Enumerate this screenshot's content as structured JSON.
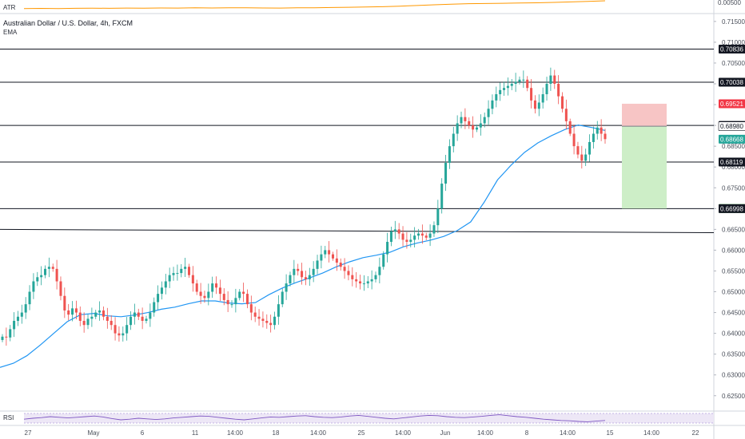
{
  "header": {
    "title": "Australian Dollar / U.S. Dollar, 4h, FXCM",
    "indicator": "EMA"
  },
  "panes": {
    "atr_label": "ATR",
    "atr_value": "0.00500",
    "rsi_label": "RSI"
  },
  "colors": {
    "bull": "#26a69a",
    "bear": "#ef5350",
    "ema": "#2196f3",
    "atr": "#ff9800",
    "rsi": "#7e57c2",
    "stop_zone": "#f7c5c5",
    "target_zone": "#cdeec7",
    "level_line": "#131722"
  },
  "chart_data": {
    "type": "line",
    "title": "Australian Dollar / U.S. Dollar, 4h, FXCM",
    "y_ticks": [
      "0.71500",
      "0.71000",
      "0.70500",
      "0.70000",
      "0.69500",
      "0.69000",
      "0.68500",
      "0.68000",
      "0.67500",
      "0.67000",
      "0.66500",
      "0.66000",
      "0.65500",
      "0.65000",
      "0.64500",
      "0.64000",
      "0.63500",
      "0.63000",
      "0.62500"
    ],
    "x_ticks": [
      "27",
      "May",
      "6",
      "11",
      "14:00",
      "18",
      "14:00",
      "25",
      "14:00",
      "Jun",
      "14:00",
      "8",
      "14:00",
      "15",
      "14:00",
      "22"
    ],
    "ylim": [
      0.6215,
      0.7167
    ],
    "price_labels": [
      {
        "text": "0.70836",
        "value": 0.70836,
        "kind": "level"
      },
      {
        "text": "0.70038",
        "value": 0.70038,
        "kind": "level"
      },
      {
        "text": "0.69521",
        "value": 0.69521,
        "kind": "stop"
      },
      {
        "text": "0.69000",
        "value": 0.69,
        "kind": "level"
      },
      {
        "text": "0.68980",
        "value": 0.6898,
        "kind": "entry"
      },
      {
        "text": "0.68668",
        "value": 0.68668,
        "kind": "last"
      },
      {
        "text": "0.68119",
        "value": 0.68119,
        "kind": "level"
      },
      {
        "text": "0.67001",
        "value": 0.67001,
        "kind": "target"
      },
      {
        "text": "0.66998",
        "value": 0.66998,
        "kind": "level"
      }
    ],
    "horizontal_levels": [
      0.70836,
      0.70038,
      0.69,
      0.68119,
      0.66998
    ],
    "trend_line": {
      "from": 0.665,
      "to": 0.6642
    },
    "position": {
      "entry": 0.6898,
      "stop": 0.69521,
      "target": 0.67001
    },
    "ema_series": [
      0.6318,
      0.6328,
      0.6346,
      0.6372,
      0.64,
      0.6428,
      0.6445,
      0.6448,
      0.6442,
      0.644,
      0.6444,
      0.645,
      0.6458,
      0.6463,
      0.6471,
      0.6478,
      0.6478,
      0.6473,
      0.6471,
      0.6474,
      0.6493,
      0.6509,
      0.6522,
      0.6533,
      0.6545,
      0.656,
      0.6572,
      0.6582,
      0.6588,
      0.6595,
      0.6608,
      0.6617,
      0.6624,
      0.6633,
      0.6647,
      0.6668,
      0.6715,
      0.6769,
      0.6804,
      0.6835,
      0.6858,
      0.6875,
      0.689,
      0.6901,
      0.6895,
      0.6888
    ],
    "close_series": [
      0.6392,
      0.639,
      0.641,
      0.643,
      0.644,
      0.645,
      0.647,
      0.65,
      0.6525,
      0.6535,
      0.654,
      0.6555,
      0.656,
      0.6555,
      0.6525,
      0.649,
      0.6455,
      0.6445,
      0.646,
      0.645,
      0.643,
      0.642,
      0.6435,
      0.644,
      0.645,
      0.6455,
      0.644,
      0.643,
      0.642,
      0.64,
      0.6395,
      0.64,
      0.642,
      0.644,
      0.645,
      0.644,
      0.643,
      0.6435,
      0.645,
      0.6475,
      0.6495,
      0.651,
      0.6525,
      0.654,
      0.6545,
      0.6545,
      0.6555,
      0.656,
      0.654,
      0.652,
      0.65,
      0.649,
      0.6485,
      0.65,
      0.652,
      0.651,
      0.6495,
      0.648,
      0.647,
      0.647,
      0.6485,
      0.65,
      0.6495,
      0.647,
      0.645,
      0.644,
      0.6435,
      0.643,
      0.6425,
      0.642,
      0.644,
      0.647,
      0.65,
      0.652,
      0.654,
      0.6555,
      0.655,
      0.6535,
      0.653,
      0.654,
      0.6555,
      0.6575,
      0.659,
      0.66,
      0.659,
      0.658,
      0.657,
      0.656,
      0.655,
      0.654,
      0.653,
      0.6525,
      0.652,
      0.652,
      0.6525,
      0.653,
      0.654,
      0.656,
      0.659,
      0.662,
      0.6645,
      0.665,
      0.664,
      0.6625,
      0.662,
      0.6625,
      0.6635,
      0.664,
      0.6635,
      0.663,
      0.664,
      0.666,
      0.67,
      0.676,
      0.681,
      0.685,
      0.688,
      0.6905,
      0.692,
      0.691,
      0.69,
      0.689,
      0.6895,
      0.6905,
      0.692,
      0.694,
      0.696,
      0.6975,
      0.6985,
      0.699,
      0.6995,
      0.7,
      0.7005,
      0.701,
      0.701,
      0.699,
      0.696,
      0.694,
      0.6955,
      0.6975,
      0.7,
      0.702,
      0.7,
      0.697,
      0.694,
      0.691,
      0.688,
      0.685,
      0.683,
      0.6815,
      0.683,
      0.686,
      0.688,
      0.6895,
      0.688,
      0.6867
    ],
    "rsi_series": [
      52,
      55,
      57,
      60,
      58,
      56,
      58,
      60,
      62,
      59,
      54,
      50,
      52,
      55,
      53,
      51,
      53,
      56,
      58,
      60,
      62,
      61,
      58,
      55,
      52,
      50,
      53,
      56,
      59,
      58,
      60,
      62,
      63,
      60,
      58,
      57,
      59,
      62,
      64,
      61,
      58,
      55,
      53,
      56,
      59,
      62,
      64,
      63,
      60,
      58,
      57,
      59,
      61,
      64,
      66,
      63,
      60,
      58,
      55,
      52,
      50,
      48,
      47,
      45,
      44,
      46,
      48
    ],
    "atr_series": [
      0.3,
      0.32,
      0.31,
      0.33,
      0.34,
      0.33,
      0.35,
      0.34,
      0.36,
      0.35,
      0.37,
      0.36,
      0.38,
      0.37,
      0.36,
      0.35,
      0.37,
      0.38,
      0.4,
      0.42,
      0.44,
      0.47,
      0.52,
      0.58,
      0.64,
      0.7,
      0.74,
      0.76,
      0.78,
      0.8,
      0.82,
      0.86,
      0.9,
      0.95,
      1.0
    ]
  }
}
